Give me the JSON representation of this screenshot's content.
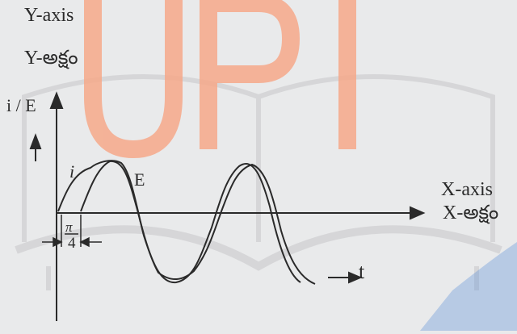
{
  "watermark": {
    "text": "UPI",
    "color": "#f6a98a",
    "accent": "#5b8fd6"
  },
  "labels": {
    "y_axis_title": "Y-axis",
    "y_axis_title_te": "Y-అక్షం",
    "y_variable": "i / E",
    "x_axis_title": "X-axis",
    "x_axis_title_te": "X-అక్షం",
    "curve_i": "i",
    "curve_e": "E",
    "phase_numerator": "π",
    "phase_denominator": "4",
    "time_label": "t"
  },
  "colors": {
    "ink": "#2a2a2a",
    "background": "#e9eaeb"
  }
}
